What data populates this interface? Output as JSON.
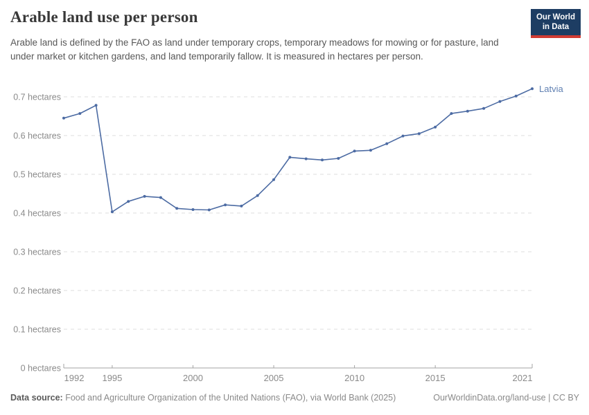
{
  "header": {
    "title": "Arable land use per person",
    "subtitle": "Arable land is defined by the FAO as land under temporary crops, temporary meadows for mowing or for pasture, land under market or kitchen gardens, and land temporarily fallow. It is measured in hectares per person.",
    "logo": {
      "line1": "Our World",
      "line2": "in Data"
    }
  },
  "chart_data": {
    "type": "line",
    "title": "Arable land use per person",
    "unit": "hectares",
    "xlim": [
      1992,
      2021
    ],
    "ylim": [
      0,
      0.7
    ],
    "grid": "horizontal-dashed",
    "legend_position": "end-of-line-label",
    "entity_label": "Latvia",
    "x_ticks": [
      1992,
      1995,
      2000,
      2005,
      2010,
      2015,
      2021
    ],
    "y_ticks": [
      0,
      0.1,
      0.2,
      0.3,
      0.4,
      0.5,
      0.6,
      0.7
    ],
    "y_tick_labels": [
      "0 hectares",
      "0.1 hectares",
      "0.2 hectares",
      "0.3 hectares",
      "0.4 hectares",
      "0.5 hectares",
      "0.6 hectares",
      "0.7 hectares"
    ],
    "series": [
      {
        "name": "Latvia",
        "color": "#4c6ba3",
        "x": [
          1992,
          1993,
          1994,
          1995,
          1996,
          1997,
          1998,
          1999,
          2000,
          2001,
          2002,
          2003,
          2004,
          2005,
          2006,
          2007,
          2008,
          2009,
          2010,
          2011,
          2012,
          2013,
          2014,
          2015,
          2016,
          2017,
          2018,
          2019,
          2020,
          2021
        ],
        "values": [
          0.645,
          0.657,
          0.678,
          0.403,
          0.43,
          0.443,
          0.44,
          0.412,
          0.409,
          0.408,
          0.421,
          0.418,
          0.445,
          0.486,
          0.544,
          0.54,
          0.537,
          0.541,
          0.56,
          0.562,
          0.579,
          0.599,
          0.605,
          0.622,
          0.657,
          0.663,
          0.67,
          0.688,
          0.702,
          0.721
        ]
      }
    ]
  },
  "colors": {
    "line": "#4c6ba3",
    "entity_label": "#6080b2",
    "gridline": "#dcdcdc",
    "axis": "#a3a3a3",
    "tick_text": "#8a8a8a",
    "logo_navy": "#1d3d63",
    "logo_red": "#d13b33"
  },
  "footer": {
    "data_source_label": "Data source:",
    "data_source_text": " Food and Agriculture Organization of the United Nations (FAO), via World Bank (2025)",
    "link_text": "OurWorldinData.org/land-use | CC BY"
  }
}
